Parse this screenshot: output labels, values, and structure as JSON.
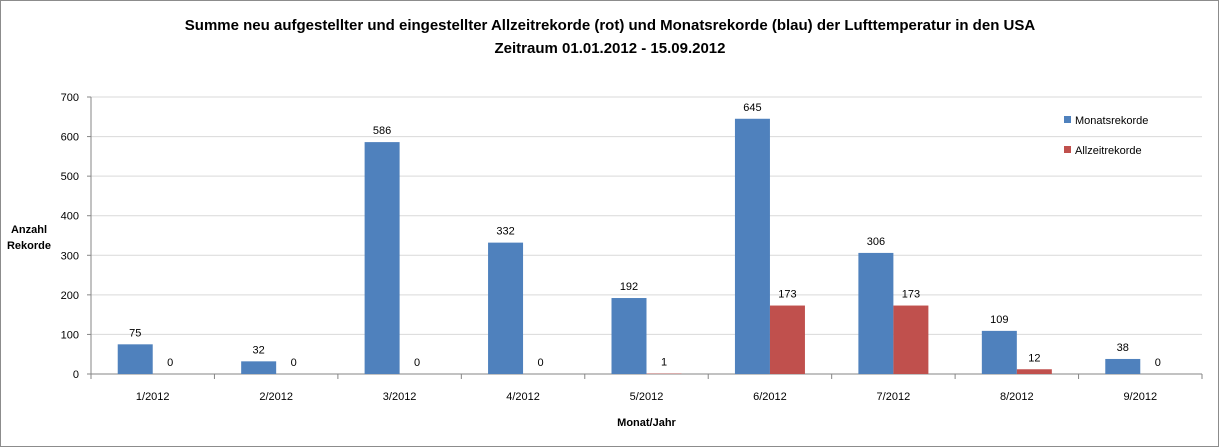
{
  "chart_data": {
    "type": "bar",
    "title_lines": [
      "Summe neu aufgestellter und eingestellter Allzeitrekorde (rot) und Monatsrekorde (blau) der Lufttemperatur in den USA",
      "Zeitraum 01.01.2012 - 15.09.2012"
    ],
    "xlabel": "Monat/Jahr",
    "ylabel_lines": [
      "Anzahl",
      "Rekorde"
    ],
    "categories": [
      "1/2012",
      "2/2012",
      "3/2012",
      "4/2012",
      "5/2012",
      "6/2012",
      "7/2012",
      "8/2012",
      "9/2012"
    ],
    "series": [
      {
        "name": "Monatsrekorde",
        "color": "#4F81BD",
        "values": [
          75,
          32,
          586,
          332,
          192,
          645,
          306,
          109,
          38
        ]
      },
      {
        "name": "Allzeitrekorde",
        "color": "#C0504D",
        "values": [
          0,
          0,
          0,
          0,
          1,
          173,
          173,
          12,
          0
        ]
      }
    ],
    "ylim": [
      0,
      700
    ],
    "yticks": [
      0,
      100,
      200,
      300,
      400,
      500,
      600,
      700
    ],
    "grid": true,
    "legend_position": "top-right",
    "data_labels": true
  }
}
